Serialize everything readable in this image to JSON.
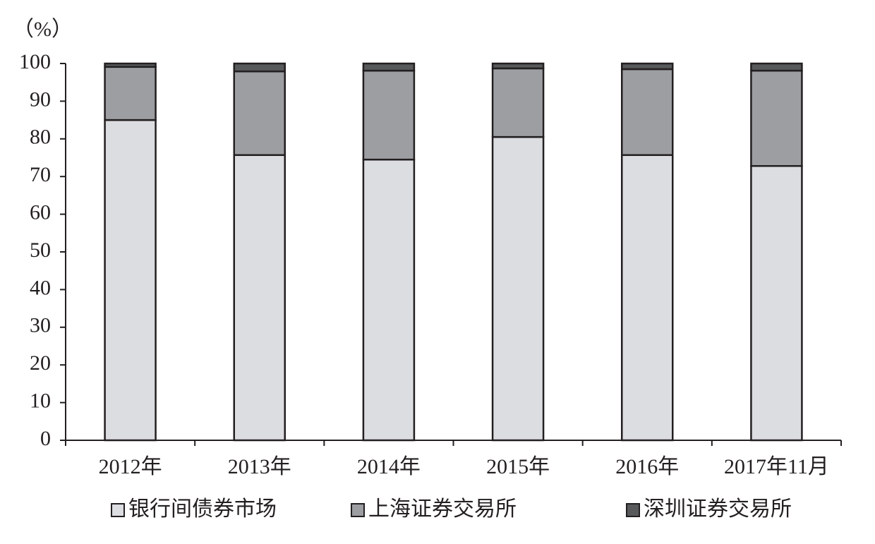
{
  "chart_data": {
    "type": "stacked_bar",
    "y_label": "（%）",
    "categories": [
      "2012年",
      "2013年",
      "2014年",
      "2015年",
      "2016年",
      "2017年11月"
    ],
    "series": [
      {
        "name": "银行间债券市场",
        "color": "#dcdde0",
        "values": [
          85.0,
          75.7,
          74.5,
          80.5,
          75.7,
          72.8
        ]
      },
      {
        "name": "上海证券交易所",
        "color": "#9d9ea2",
        "values": [
          14.1,
          22.2,
          23.6,
          18.2,
          22.8,
          25.3
        ]
      },
      {
        "name": "深圳证券交易所",
        "color": "#58595b",
        "values": [
          0.9,
          2.1,
          1.9,
          1.3,
          1.5,
          1.9
        ]
      }
    ],
    "ylim": [
      0,
      100
    ],
    "yticks": [
      0,
      10,
      20,
      30,
      40,
      50,
      60,
      70,
      80,
      90,
      100
    ],
    "legend": "bottom"
  }
}
